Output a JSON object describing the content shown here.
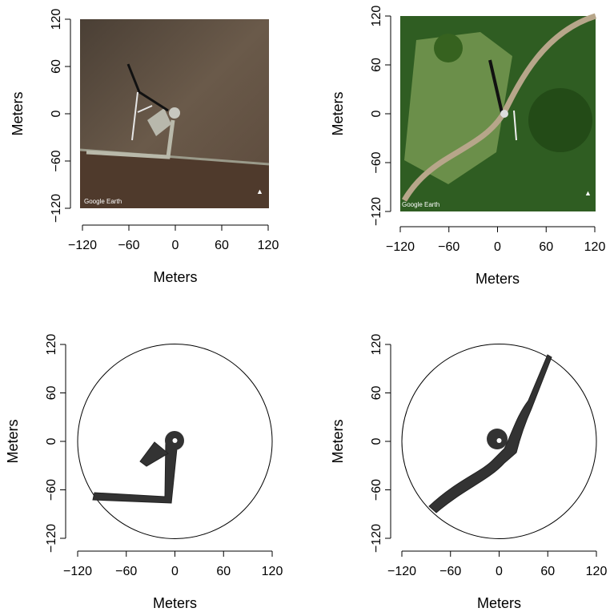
{
  "charts": [
    {
      "type": "image",
      "xlabel": "Meters",
      "ylabel": "Meters",
      "annotation": "Google Earth",
      "xlim": [
        -120,
        120
      ],
      "ylim": [
        -120,
        120
      ],
      "xticks": [
        {
          "value": -120,
          "label": "−120"
        },
        {
          "value": -60,
          "label": "−60"
        },
        0,
        60,
        120
      ],
      "yticks": [
        {
          "value": -120,
          "label": "−120"
        },
        {
          "value": -60,
          "label": "−60"
        },
        0,
        60,
        120
      ]
    },
    {
      "type": "image",
      "xlabel": "Meters",
      "ylabel": "Meters",
      "annotation": "Google Earth",
      "xlim": [
        -120,
        120
      ],
      "ylim": [
        -120,
        120
      ],
      "xticks": [
        {
          "value": -120,
          "label": "−120"
        },
        {
          "value": -60,
          "label": "−60"
        },
        0,
        60,
        120
      ],
      "yticks": [
        {
          "value": -120,
          "label": "−120"
        },
        {
          "value": -60,
          "label": "−60"
        },
        0,
        60,
        120
      ]
    },
    {
      "type": "map",
      "xlabel": "Meters",
      "ylabel": "Meters",
      "xlim": [
        -120,
        120
      ],
      "ylim": [
        -120,
        120
      ],
      "xticks": [
        {
          "value": -120,
          "label": "−120"
        },
        {
          "value": -60,
          "label": "−60"
        },
        0,
        60,
        120
      ],
      "yticks": [
        {
          "value": -120,
          "label": "−120"
        },
        {
          "value": -60,
          "label": "−60"
        },
        0,
        60,
        120
      ]
    },
    {
      "type": "map",
      "xlabel": "Meters",
      "ylabel": "Meters",
      "xlim": [
        -120,
        120
      ],
      "ylim": [
        -120,
        120
      ],
      "xticks": [
        {
          "value": -120,
          "label": "−120"
        },
        {
          "value": -60,
          "label": "−60"
        },
        0,
        60,
        120
      ],
      "yticks": [
        {
          "value": -120,
          "label": "−120"
        },
        {
          "value": -60,
          "label": "−60"
        },
        0,
        60,
        120
      ]
    }
  ]
}
